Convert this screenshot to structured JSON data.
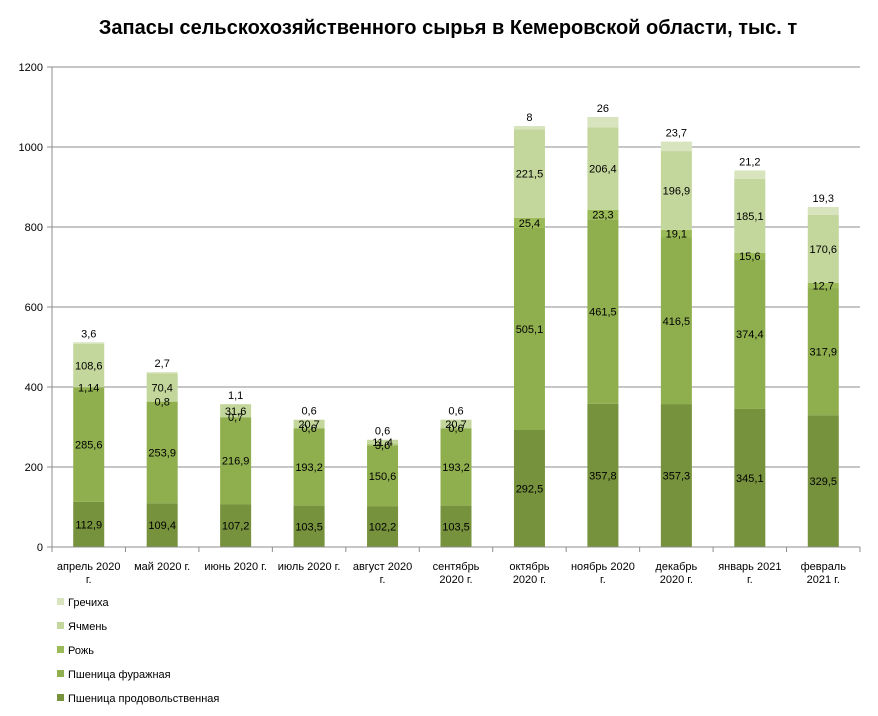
{
  "chart_data": {
    "type": "bar",
    "stacked": true,
    "title": "Запасы сельскохозяйственного сырья в Кемеровской области, тыс. т",
    "xlabel": "",
    "ylabel": "",
    "ylim": [
      0,
      1200
    ],
    "yticks": [
      "0",
      "200",
      "400",
      "600",
      "800",
      "1000",
      "1200"
    ],
    "grid": true,
    "legend_position": "bottom-left",
    "categories": [
      [
        "апрель 2020",
        "г."
      ],
      [
        "май 2020 г."
      ],
      [
        "июнь 2020 г."
      ],
      [
        "июль 2020 г."
      ],
      [
        "август 2020",
        "г."
      ],
      [
        "сентябрь",
        "2020 г."
      ],
      [
        "октябрь",
        "2020 г."
      ],
      [
        "ноябрь 2020",
        "г."
      ],
      [
        "декабрь",
        "2020 г."
      ],
      [
        "январь 2021",
        "г."
      ],
      [
        "февраль",
        "2021 г."
      ]
    ],
    "series": [
      {
        "name": "Пшеница продовольственная",
        "color": "#76923c",
        "values": [
          112.9,
          109.4,
          107.2,
          103.5,
          102.2,
          103.5,
          292.5,
          357.8,
          357.3,
          345.1,
          329.5
        ],
        "labels": [
          "112,9",
          "109,4",
          "107,2",
          "103,5",
          "102,2",
          "103,5",
          "292,5",
          "357,8",
          "357,3",
          "345,1",
          "329,5"
        ]
      },
      {
        "name": "Пшеница фуражная",
        "color": "#8faf4f",
        "values": [
          285.6,
          253.9,
          216.9,
          193.2,
          150.6,
          193.2,
          505.1,
          461.5,
          416.5,
          374.4,
          317.9
        ],
        "labels": [
          "285,6",
          "253,9",
          "216,9",
          "193,2",
          "150,6",
          "193,2",
          "505,1",
          "461,5",
          "416,5",
          "374,4",
          "317,9"
        ]
      },
      {
        "name": "Рожь",
        "color": "#9bbb59",
        "values": [
          1.14,
          0.8,
          0.7,
          0.6,
          3.6,
          0.6,
          25.4,
          23.3,
          19.1,
          15.6,
          12.7
        ],
        "labels": [
          "1,14",
          "0,8",
          "0,7",
          "0,6",
          "3,6",
          "0,6",
          "25,4",
          "23,3",
          "19,1",
          "15,6",
          "12,7"
        ]
      },
      {
        "name": "Ячмень",
        "color": "#c3d69b",
        "values": [
          108.6,
          70.4,
          31.6,
          20.7,
          11.4,
          20.7,
          221.5,
          206.4,
          196.9,
          185.1,
          170.6
        ],
        "labels": [
          "108,6",
          "70,4",
          "31,6",
          "20,7",
          "11,4",
          "20,7",
          "221,5",
          "206,4",
          "196,9",
          "185,1",
          "170,6"
        ]
      },
      {
        "name": "Гречиха",
        "color": "#d7e4bd",
        "values": [
          3.6,
          2.7,
          1.1,
          0.6,
          0.6,
          0.6,
          8,
          26,
          23.7,
          21.2,
          19.3
        ],
        "labels": [
          "3,6",
          "2,7",
          "1,1",
          "0,6",
          "0,6",
          "0,6",
          "8",
          "26",
          "23,7",
          "21,2",
          "19,3"
        ]
      }
    ],
    "legend_order": [
      "Гречиха",
      "Ячмень",
      "Рожь",
      "Пшеница фуражная",
      "Пшеница продовольственная"
    ]
  }
}
